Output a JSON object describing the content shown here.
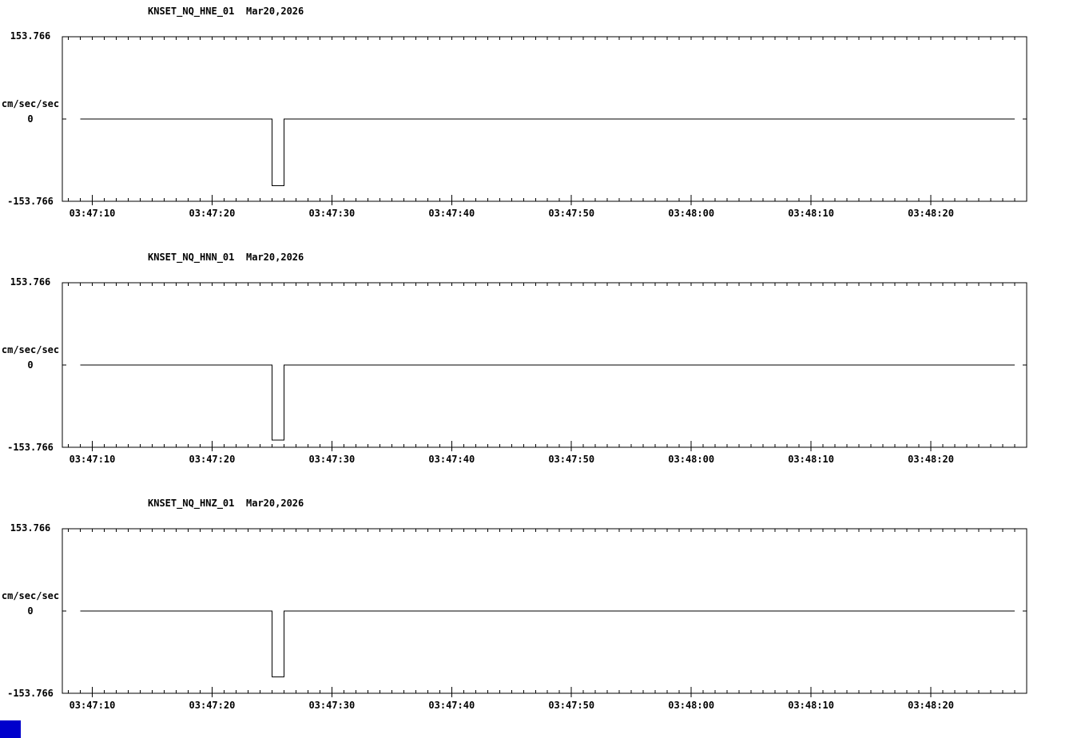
{
  "page": {
    "background": "#ffffff",
    "line_color": "#000000",
    "corner_box_color": "#0000cc"
  },
  "chart_data": [
    {
      "type": "line",
      "station": "KNSET_NQ_HNE_01",
      "date": "Mar20,2026",
      "ylabel": "cm/sec/sec",
      "ylim": [
        -153.766,
        153.766
      ],
      "ytick_labels": {
        "top": "153.766",
        "zero": "0",
        "bottom": "-153.766"
      },
      "x_seconds_after": "03:47:00",
      "xlim_seconds": [
        7.5,
        88
      ],
      "x_minor_step_seconds": 1,
      "x_major_ticks": [
        {
          "t": 10,
          "label": "03:47:10"
        },
        {
          "t": 20,
          "label": "03:47:20"
        },
        {
          "t": 30,
          "label": "03:47:30"
        },
        {
          "t": 40,
          "label": "03:47:40"
        },
        {
          "t": 50,
          "label": "03:47:50"
        },
        {
          "t": 60,
          "label": "03:48:00"
        },
        {
          "t": 70,
          "label": "03:48:10"
        },
        {
          "t": 80,
          "label": "03:48:20"
        }
      ],
      "grid": false,
      "legend": "none",
      "points": [
        [
          9,
          0
        ],
        [
          25,
          0
        ],
        [
          25,
          -125
        ],
        [
          26,
          -125
        ],
        [
          26,
          0
        ],
        [
          87,
          0
        ]
      ]
    },
    {
      "type": "line",
      "station": "KNSET_NQ_HNN_01",
      "date": "Mar20,2026",
      "ylabel": "cm/sec/sec",
      "ylim": [
        -153.766,
        153.766
      ],
      "ytick_labels": {
        "top": "153.766",
        "zero": "0",
        "bottom": "-153.766"
      },
      "x_seconds_after": "03:47:00",
      "xlim_seconds": [
        7.5,
        88
      ],
      "x_minor_step_seconds": 1,
      "x_major_ticks": [
        {
          "t": 10,
          "label": "03:47:10"
        },
        {
          "t": 20,
          "label": "03:47:20"
        },
        {
          "t": 30,
          "label": "03:47:30"
        },
        {
          "t": 40,
          "label": "03:47:40"
        },
        {
          "t": 50,
          "label": "03:47:50"
        },
        {
          "t": 60,
          "label": "03:48:00"
        },
        {
          "t": 70,
          "label": "03:48:10"
        },
        {
          "t": 80,
          "label": "03:48:20"
        }
      ],
      "grid": false,
      "legend": "none",
      "points": [
        [
          9,
          0
        ],
        [
          25,
          0
        ],
        [
          25,
          -140
        ],
        [
          26,
          -140
        ],
        [
          26,
          0
        ],
        [
          87,
          0
        ]
      ]
    },
    {
      "type": "line",
      "station": "KNSET_NQ_HNZ_01",
      "date": "Mar20,2026",
      "ylabel": "cm/sec/sec",
      "ylim": [
        -153.766,
        153.766
      ],
      "ytick_labels": {
        "top": "153.766",
        "zero": "0",
        "bottom": "-153.766"
      },
      "x_seconds_after": "03:47:00",
      "xlim_seconds": [
        7.5,
        88
      ],
      "x_minor_step_seconds": 1,
      "x_major_ticks": [
        {
          "t": 10,
          "label": "03:47:10"
        },
        {
          "t": 20,
          "label": "03:47:20"
        },
        {
          "t": 30,
          "label": "03:47:30"
        },
        {
          "t": 40,
          "label": "03:47:40"
        },
        {
          "t": 50,
          "label": "03:47:50"
        },
        {
          "t": 60,
          "label": "03:48:00"
        },
        {
          "t": 70,
          "label": "03:48:10"
        },
        {
          "t": 80,
          "label": "03:48:20"
        }
      ],
      "grid": false,
      "legend": "none",
      "points": [
        [
          9,
          0
        ],
        [
          25,
          0
        ],
        [
          25,
          -123
        ],
        [
          26,
          -123
        ],
        [
          26,
          0
        ],
        [
          87,
          0
        ]
      ]
    }
  ]
}
